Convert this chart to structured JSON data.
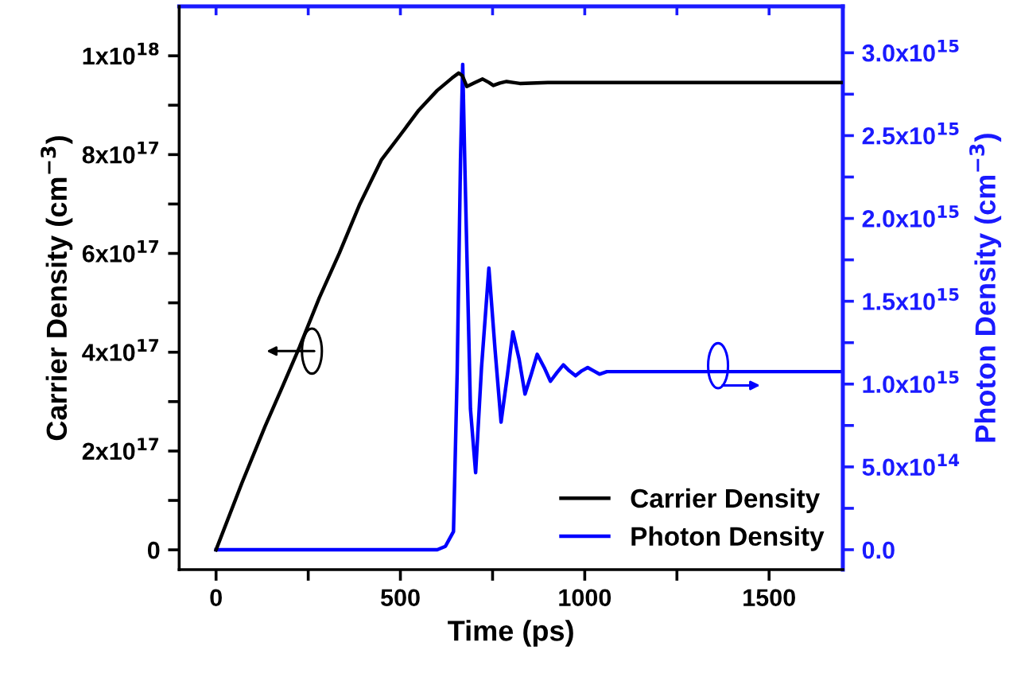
{
  "chart_data": {
    "type": "line",
    "xlabel": "Time (ps)",
    "ylabel": "Carrier Density (cm$^{−3}$)",
    "y2label": "Photon Density (cm$^{−3}$)",
    "xlim": [
      -100,
      1700
    ],
    "xticks": [
      0,
      {
        "value": 250,
        "label": null
      },
      500,
      {
        "value": 750,
        "label": null
      },
      1000,
      {
        "value": 1250,
        "label": null
      },
      1500
    ],
    "ylim": [
      -4e+16,
      1.1e+18
    ],
    "yticks": [
      {
        "value": 0,
        "label": "0"
      },
      {
        "value": 1e+17,
        "label": null
      },
      {
        "value": 2e+17,
        "label": "2x10$^{17}$"
      },
      {
        "value": 3e+17,
        "label": null
      },
      {
        "value": 4e+17,
        "label": "4x10$^{17}$"
      },
      {
        "value": 5e+17,
        "label": null
      },
      {
        "value": 6e+17,
        "label": "6x10$^{17}$"
      },
      {
        "value": 7e+17,
        "label": null
      },
      {
        "value": 8e+17,
        "label": "8x10$^{17}$"
      },
      {
        "value": 9e+17,
        "label": null
      },
      {
        "value": 1e+18,
        "label": "1x10$^{18}$"
      }
    ],
    "y2lim": [
      -120000000000000.0,
      3280000000000000.0
    ],
    "y2ticks": [
      {
        "value": 0,
        "label": "0.0"
      },
      {
        "value": 250000000000000.0,
        "label": null
      },
      {
        "value": 500000000000000.0,
        "label": "5.0x10$^{14}$"
      },
      {
        "value": 750000000000000.0,
        "label": null
      },
      {
        "value": 1000000000000000.0,
        "label": "1.0x10$^{15}$"
      },
      {
        "value": 1250000000000000.0,
        "label": null
      },
      {
        "value": 1500000000000000.0,
        "label": "1.5x10$^{15}$"
      },
      {
        "value": 1750000000000000.0,
        "label": null
      },
      {
        "value": 2000000000000000.0,
        "label": "2.0x10$^{15}$"
      },
      {
        "value": 2250000000000000.0,
        "label": null
      },
      {
        "value": 2500000000000000.0,
        "label": "2.5x10$^{15}$"
      },
      {
        "value": 2750000000000000.0,
        "label": null
      },
      {
        "value": 3000000000000000.0,
        "label": "3.0x10$^{15}$"
      }
    ],
    "legend": "bottom right",
    "grid": false,
    "marker": "none",
    "line_style": "solid",
    "series": [
      {
        "name": "Carrier Density",
        "color": "#000000",
        "x": [
          0,
          70,
          133,
          180,
          226,
          280,
          334,
          390,
          449,
          500,
          550,
          600,
          640,
          658,
          668,
          680,
          700,
          723,
          740,
          752,
          770,
          788,
          805,
          824,
          900,
          1700
        ],
        "values": [
          0,
          1.35e+17,
          2.5e+17,
          3.3e+17,
          4.1e+17,
          5.1e+17,
          6e+17,
          7e+17,
          7.9e+17,
          8.4e+17,
          8.9e+17,
          9.3e+17,
          9.55e+17,
          9.65e+17,
          9.6e+17,
          9.38e+17,
          9.45e+17,
          9.53e+17,
          9.46e+17,
          9.4e+17,
          9.45e+17,
          9.48e+17,
          9.46e+17,
          9.44e+17,
          9.46e+17,
          9.46e+17
        ]
      },
      {
        "name": "Photon Density",
        "color": "#0000ff",
        "axis": "y2",
        "x": [
          0,
          600,
          622,
          644,
          654,
          663,
          669,
          675,
          690,
          704,
          720,
          740,
          757,
          773,
          790,
          805,
          822,
          838,
          855,
          871,
          890,
          907,
          925,
          942,
          958,
          975,
          992,
          1008,
          1024,
          1040,
          1060,
          1100,
          1700
        ],
        "values": [
          0,
          0,
          20000000000000.0,
          110000000000000.0,
          1070000000000000.0,
          2350000000000000.0,
          2930000000000000.0,
          2300000000000000.0,
          850000000000000.0,
          465000000000000.0,
          1100000000000000.0,
          1700000000000000.0,
          1200000000000000.0,
          770000000000000.0,
          1050000000000000.0,
          1315000000000000.0,
          1150000000000000.0,
          940000000000000.0,
          1060000000000000.0,
          1180000000000000.0,
          1100000000000000.0,
          1017000000000000.0,
          1070000000000000.0,
          1116000000000000.0,
          1080000000000000.0,
          1050000000000000.0,
          1080000000000000.0,
          1100000000000000.0,
          1080000000000000.0,
          1060000000000000.0,
          1075000000000000.0,
          1075000000000000.0,
          1075000000000000.0
        ]
      }
    ]
  }
}
